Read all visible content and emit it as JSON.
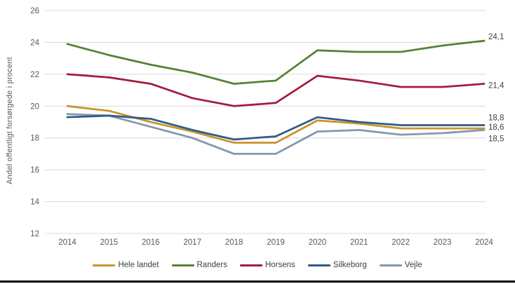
{
  "chart_data": {
    "type": "line",
    "title": "",
    "ylabel": "Andel offentligt forsørgede i procent",
    "xlabel": "",
    "ylim": [
      12,
      26
    ],
    "ytick_step": 2,
    "grid": true,
    "legend_position": "bottom",
    "x": [
      2014,
      2015,
      2016,
      2017,
      2018,
      2019,
      2020,
      2021,
      2022,
      2023,
      2024
    ],
    "series": [
      {
        "name": "Hele landet",
        "color": "#C9932B",
        "values": [
          20.0,
          19.7,
          19.0,
          18.4,
          17.7,
          17.7,
          19.1,
          18.9,
          18.6,
          18.6,
          18.6
        ]
      },
      {
        "name": "Randers",
        "color": "#548235",
        "values": [
          23.9,
          23.2,
          22.6,
          22.1,
          21.4,
          21.6,
          23.5,
          23.4,
          23.4,
          23.8,
          24.1
        ]
      },
      {
        "name": "Horsens",
        "color": "#A21C3B",
        "values": [
          22.0,
          21.8,
          21.4,
          20.5,
          20.0,
          20.2,
          21.9,
          21.6,
          21.2,
          21.2,
          21.4
        ]
      },
      {
        "name": "Silkeborg",
        "color": "#2C5C8A",
        "values": [
          19.3,
          19.4,
          19.2,
          18.5,
          17.9,
          18.1,
          19.3,
          19.0,
          18.8,
          18.8,
          18.8
        ]
      },
      {
        "name": "Vejle",
        "color": "#8497B0",
        "values": [
          19.5,
          19.4,
          18.7,
          18.0,
          17.0,
          17.0,
          18.4,
          18.5,
          18.2,
          18.3,
          18.5
        ]
      }
    ],
    "end_labels": {
      "Randers": "24,1",
      "Horsens": "21,4",
      "Silkeborg": "18,8",
      "Hele landet": "18,6",
      "Vejle": "18,5"
    },
    "colors": {
      "gridline": "#D9D9D9",
      "tick_text": "#595959",
      "end_label_text": "#404040"
    }
  }
}
